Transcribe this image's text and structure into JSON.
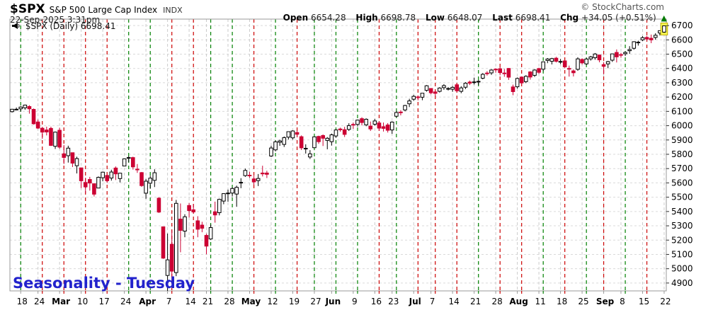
{
  "header": {
    "symbol": "$SPX",
    "name": "S&P 500 Large Cap Index",
    "exchange": "INDX",
    "datetime": "22-Sep-2025 3:31pm",
    "copyright": "© StockCharts.com",
    "quote": {
      "open_label": "Open",
      "open": "6654.28",
      "high_label": "High",
      "high": "6698.78",
      "low_label": "Low",
      "low": "6648.07",
      "last_label": "Last",
      "last": "6698.41",
      "chg_label": "Chg",
      "chg": "+34.05 (+0.51%)",
      "arrow": "▲"
    }
  },
  "legend": {
    "text": "$SPX (Daily) 6698.41"
  },
  "annotation": {
    "text": "Seasonality - Tuesday",
    "color": "#2222cc"
  },
  "colors": {
    "up_fill": "#ffffff",
    "up_stroke": "#000000",
    "down": "#cc0033",
    "tuesday_up": "#008000",
    "tuesday_down": "#cc0000",
    "grid": "#dadada",
    "week_grid": "#cccccc",
    "frame": "#999999",
    "highlight_fill": "#ffff55",
    "highlight_stroke": "#bbaa00",
    "axis_text": "#000000",
    "change_green": "#007a00"
  },
  "chart_data": {
    "type": "candlestick",
    "symbol": "$SPX",
    "timeframe": "Daily",
    "title": "$SPX (Daily) 6698.41",
    "date_range": "13-Feb-2025 to 22-Sep-2025",
    "ylim": [
      4845,
      6745
    ],
    "y_ticks": [
      4900,
      5000,
      5100,
      5200,
      5300,
      5400,
      5500,
      5600,
      5700,
      5800,
      5900,
      6000,
      6100,
      6200,
      6300,
      6400,
      6500,
      6600,
      6700
    ],
    "x_week_labels": [
      "18",
      "24",
      "Mar",
      "10",
      "17",
      "24",
      "Apr",
      "7",
      "14",
      "21",
      "28",
      "May",
      "12",
      "19",
      "27",
      "Jun",
      "9",
      "16",
      "23",
      "Jul",
      "7",
      "14",
      "21",
      "28",
      "Aug",
      "11",
      "18",
      "25",
      "Sep",
      "8",
      "15",
      "22"
    ],
    "week_start_indices": [
      2,
      6,
      11,
      16,
      21,
      26,
      31,
      36,
      41,
      45,
      50,
      55,
      60,
      65,
      70,
      74,
      79,
      84,
      88,
      93,
      97,
      102,
      107,
      112,
      117,
      122,
      127,
      132,
      137,
      141,
      146,
      151
    ],
    "tuesday_lines": [
      [
        2,
        "g"
      ],
      [
        7,
        "r"
      ],
      [
        12,
        "r"
      ],
      [
        17,
        "r"
      ],
      [
        22,
        "r"
      ],
      [
        27,
        "g"
      ],
      [
        32,
        "g"
      ],
      [
        37,
        "r"
      ],
      [
        42,
        "r"
      ],
      [
        46,
        "g"
      ],
      [
        51,
        "g"
      ],
      [
        56,
        "r"
      ],
      [
        61,
        "g"
      ],
      [
        66,
        "r"
      ],
      [
        70,
        "g"
      ],
      [
        75,
        "g"
      ],
      [
        80,
        "g"
      ],
      [
        85,
        "r"
      ],
      [
        89,
        "g"
      ],
      [
        94,
        "r"
      ],
      [
        98,
        "r"
      ],
      [
        103,
        "r"
      ],
      [
        108,
        "g"
      ],
      [
        113,
        "r"
      ],
      [
        118,
        "r"
      ],
      [
        123,
        "g"
      ],
      [
        128,
        "r"
      ],
      [
        133,
        "g"
      ],
      [
        137,
        "r"
      ],
      [
        142,
        "g"
      ],
      [
        147,
        "r"
      ]
    ],
    "candles": [
      [
        "2/13",
        6098,
        6117,
        6092,
        6115
      ],
      [
        "2/14",
        6112,
        6127,
        6107,
        6115
      ],
      [
        "2/18",
        6118,
        6136,
        6099,
        6130
      ],
      [
        "2/19",
        6125,
        6147,
        6111,
        6144
      ],
      [
        "2/20",
        6134,
        6143,
        6084,
        6118
      ],
      [
        "2/21",
        6114,
        6120,
        6008,
        6013
      ],
      [
        "2/24",
        6026,
        6043,
        5977,
        5983
      ],
      [
        "2/25",
        5982,
        5992,
        5908,
        5955
      ],
      [
        "2/26",
        5970,
        5993,
        5932,
        5956
      ],
      [
        "2/27",
        5981,
        5993,
        5858,
        5862
      ],
      [
        "2/28",
        5856,
        5959,
        5837,
        5955
      ],
      [
        "3/3",
        5968,
        5986,
        5838,
        5850
      ],
      [
        "3/4",
        5803,
        5865,
        5732,
        5778
      ],
      [
        "3/5",
        5790,
        5860,
        5742,
        5843
      ],
      [
        "3/6",
        5811,
        5812,
        5711,
        5738
      ],
      [
        "3/7",
        5720,
        5783,
        5666,
        5770
      ],
      [
        "3/10",
        5705,
        5705,
        5564,
        5615
      ],
      [
        "3/11",
        5603,
        5636,
        5528,
        5572
      ],
      [
        "3/12",
        5624,
        5642,
        5546,
        5599
      ],
      [
        "3/13",
        5594,
        5597,
        5505,
        5521
      ],
      [
        "3/14",
        5564,
        5645,
        5563,
        5639
      ],
      [
        "3/17",
        5636,
        5679,
        5611,
        5675
      ],
      [
        "3/18",
        5652,
        5657,
        5600,
        5615
      ],
      [
        "3/19",
        5634,
        5692,
        5616,
        5676
      ],
      [
        "3/20",
        5704,
        5715,
        5620,
        5663
      ],
      [
        "3/21",
        5630,
        5670,
        5603,
        5668
      ],
      [
        "3/24",
        5718,
        5769,
        5716,
        5768
      ],
      [
        "3/25",
        5776,
        5787,
        5745,
        5777
      ],
      [
        "3/26",
        5777,
        5783,
        5693,
        5712
      ],
      [
        "3/27",
        5696,
        5732,
        5670,
        5693
      ],
      [
        "3/28",
        5672,
        5676,
        5572,
        5581
      ],
      [
        "3/31",
        5528,
        5627,
        5489,
        5612
      ],
      [
        "4/1",
        5598,
        5650,
        5559,
        5633
      ],
      [
        "4/2",
        5618,
        5695,
        5571,
        5671
      ],
      [
        "4/3",
        5493,
        5500,
        5390,
        5396
      ],
      [
        "4/4",
        5293,
        5293,
        5069,
        5074
      ],
      [
        "4/7",
        4953,
        5246,
        4835,
        5062
      ],
      [
        "4/8",
        5171,
        5267,
        4910,
        4983
      ],
      [
        "4/9",
        4973,
        5481,
        4948,
        5457
      ],
      [
        "4/10",
        5347,
        5456,
        5115,
        5268
      ],
      [
        "4/11",
        5263,
        5381,
        5220,
        5363
      ],
      [
        "4/14",
        5442,
        5459,
        5358,
        5406
      ],
      [
        "4/15",
        5412,
        5450,
        5386,
        5397
      ],
      [
        "4/16",
        5335,
        5367,
        5220,
        5276
      ],
      [
        "4/17",
        5305,
        5328,
        5255,
        5283
      ],
      [
        "4/21",
        5233,
        5245,
        5101,
        5158
      ],
      [
        "4/22",
        5208,
        5309,
        5202,
        5288
      ],
      [
        "4/23",
        5398,
        5469,
        5322,
        5376
      ],
      [
        "4/24",
        5392,
        5490,
        5373,
        5485
      ],
      [
        "4/25",
        5473,
        5528,
        5451,
        5525
      ],
      [
        "4/28",
        5529,
        5553,
        5468,
        5529
      ],
      [
        "4/29",
        5529,
        5570,
        5505,
        5561
      ],
      [
        "4/30",
        5522,
        5581,
        5433,
        5569
      ],
      [
        "5/1",
        5604,
        5633,
        5563,
        5604
      ],
      [
        "5/2",
        5651,
        5700,
        5642,
        5687
      ],
      [
        "5/5",
        5654,
        5679,
        5635,
        5650
      ],
      [
        "5/6",
        5628,
        5650,
        5586,
        5607
      ],
      [
        "5/7",
        5616,
        5662,
        5578,
        5631
      ],
      [
        "5/8",
        5669,
        5720,
        5645,
        5663
      ],
      [
        "5/9",
        5669,
        5685,
        5634,
        5660
      ],
      [
        "5/12",
        5788,
        5859,
        5781,
        5844
      ],
      [
        "5/13",
        5831,
        5896,
        5820,
        5887
      ],
      [
        "5/14",
        5884,
        5902,
        5859,
        5893
      ],
      [
        "5/15",
        5869,
        5925,
        5851,
        5916
      ],
      [
        "5/16",
        5920,
        5959,
        5903,
        5958
      ],
      [
        "5/19",
        5915,
        5968,
        5903,
        5963
      ],
      [
        "5/20",
        5952,
        5963,
        5921,
        5940
      ],
      [
        "5/21",
        5923,
        5932,
        5830,
        5845
      ],
      [
        "5/22",
        5842,
        5870,
        5805,
        5842
      ],
      [
        "5/23",
        5781,
        5829,
        5767,
        5803
      ],
      [
        "5/27",
        5846,
        5925,
        5843,
        5922
      ],
      [
        "5/28",
        5925,
        5930,
        5873,
        5888
      ],
      [
        "5/29",
        5931,
        5939,
        5858,
        5912
      ],
      [
        "5/30",
        5897,
        5920,
        5835,
        5912
      ],
      [
        "6/2",
        5888,
        5944,
        5861,
        5936
      ],
      [
        "6/3",
        5928,
        5974,
        5915,
        5970
      ],
      [
        "6/4",
        5977,
        5986,
        5958,
        5971
      ],
      [
        "6/5",
        5972,
        5992,
        5921,
        5939
      ],
      [
        "6/6",
        5974,
        6017,
        5963,
        6000
      ],
      [
        "6/9",
        6009,
        6022,
        5978,
        6006
      ],
      [
        "6/10",
        6009,
        6043,
        5994,
        6039
      ],
      [
        "6/11",
        6049,
        6059,
        6002,
        6022
      ],
      [
        "6/12",
        6006,
        6051,
        5996,
        6045
      ],
      [
        "6/13",
        5997,
        6029,
        5963,
        5977
      ],
      [
        "6/16",
        6010,
        6047,
        6000,
        6033
      ],
      [
        "6/17",
        6019,
        6030,
        5965,
        5983
      ],
      [
        "6/18",
        5993,
        6022,
        5959,
        5981
      ],
      [
        "6/20",
        6005,
        6018,
        5952,
        5968
      ],
      [
        "6/23",
        5970,
        6030,
        5943,
        6025
      ],
      [
        "6/24",
        6066,
        6101,
        6059,
        6092
      ],
      [
        "6/25",
        6095,
        6108,
        6072,
        6092
      ],
      [
        "6/26",
        6110,
        6146,
        6100,
        6141
      ],
      [
        "6/27",
        6153,
        6188,
        6130,
        6173
      ],
      [
        "6/30",
        6185,
        6215,
        6174,
        6205
      ],
      [
        "7/1",
        6201,
        6210,
        6177,
        6198
      ],
      [
        "7/2",
        6199,
        6228,
        6178,
        6227
      ],
      [
        "7/3",
        6247,
        6284,
        6238,
        6279
      ],
      [
        "7/7",
        6260,
        6262,
        6220,
        6230
      ],
      [
        "7/8",
        6236,
        6242,
        6207,
        6226
      ],
      [
        "7/9",
        6240,
        6269,
        6232,
        6263
      ],
      [
        "7/10",
        6266,
        6290,
        6251,
        6280
      ],
      [
        "7/11",
        6255,
        6269,
        6246,
        6260
      ],
      [
        "7/14",
        6255,
        6277,
        6237,
        6268
      ],
      [
        "7/15",
        6286,
        6293,
        6236,
        6244
      ],
      [
        "7/16",
        6240,
        6276,
        6227,
        6264
      ],
      [
        "7/17",
        6269,
        6304,
        6256,
        6297
      ],
      [
        "7/18",
        6305,
        6315,
        6284,
        6297
      ],
      [
        "7/21",
        6306,
        6336,
        6288,
        6306
      ],
      [
        "7/22",
        6307,
        6320,
        6283,
        6310
      ],
      [
        "7/23",
        6332,
        6368,
        6324,
        6359
      ],
      [
        "7/24",
        6368,
        6381,
        6350,
        6363
      ],
      [
        "7/25",
        6369,
        6395,
        6355,
        6389
      ],
      [
        "7/28",
        6395,
        6401,
        6370,
        6390
      ],
      [
        "7/29",
        6398,
        6409,
        6352,
        6371
      ],
      [
        "7/30",
        6368,
        6396,
        6342,
        6363
      ],
      [
        "7/31",
        6400,
        6403,
        6320,
        6339
      ],
      [
        "8/1",
        6271,
        6287,
        6213,
        6238
      ],
      [
        "8/4",
        6272,
        6337,
        6259,
        6330
      ],
      [
        "8/5",
        6340,
        6341,
        6288,
        6299
      ],
      [
        "8/6",
        6308,
        6353,
        6298,
        6345
      ],
      [
        "8/7",
        6376,
        6381,
        6322,
        6340
      ],
      [
        "8/8",
        6352,
        6395,
        6341,
        6389
      ],
      [
        "8/11",
        6399,
        6405,
        6362,
        6373
      ],
      [
        "8/12",
        6395,
        6447,
        6381,
        6446
      ],
      [
        "8/13",
        6456,
        6473,
        6437,
        6466
      ],
      [
        "8/14",
        6450,
        6474,
        6428,
        6469
      ],
      [
        "8/15",
        6472,
        6481,
        6442,
        6450
      ],
      [
        "8/18",
        6449,
        6466,
        6431,
        6449
      ],
      [
        "8/19",
        6453,
        6456,
        6401,
        6411
      ],
      [
        "8/20",
        6400,
        6420,
        6343,
        6395
      ],
      [
        "8/21",
        6383,
        6393,
        6344,
        6370
      ],
      [
        "8/22",
        6394,
        6478,
        6384,
        6467
      ],
      [
        "8/25",
        6463,
        6471,
        6428,
        6439
      ],
      [
        "8/26",
        6432,
        6473,
        6424,
        6466
      ],
      [
        "8/27",
        6467,
        6488,
        6455,
        6481
      ],
      [
        "8/28",
        6475,
        6508,
        6461,
        6501
      ],
      [
        "8/29",
        6494,
        6497,
        6443,
        6460
      ],
      [
        "9/2",
        6427,
        6444,
        6360,
        6415
      ],
      [
        "9/3",
        6432,
        6453,
        6402,
        6448
      ],
      [
        "9/4",
        6458,
        6503,
        6446,
        6502
      ],
      [
        "9/5",
        6512,
        6533,
        6442,
        6481
      ],
      [
        "9/8",
        6497,
        6509,
        6475,
        6495
      ],
      [
        "9/9",
        6503,
        6519,
        6487,
        6512
      ],
      [
        "9/10",
        6524,
        6556,
        6502,
        6532
      ],
      [
        "9/11",
        6541,
        6590,
        6531,
        6587
      ],
      [
        "9/12",
        6582,
        6594,
        6560,
        6584
      ],
      [
        "9/15",
        6600,
        6626,
        6592,
        6615
      ],
      [
        "9/16",
        6617,
        6627,
        6593,
        6606
      ],
      [
        "9/17",
        6611,
        6637,
        6577,
        6600
      ],
      [
        "9/18",
        6617,
        6646,
        6601,
        6632
      ],
      [
        "9/19",
        6648,
        6666,
        6631,
        6664
      ],
      [
        "9/22",
        6654,
        6699,
        6648,
        6698
      ]
    ]
  }
}
